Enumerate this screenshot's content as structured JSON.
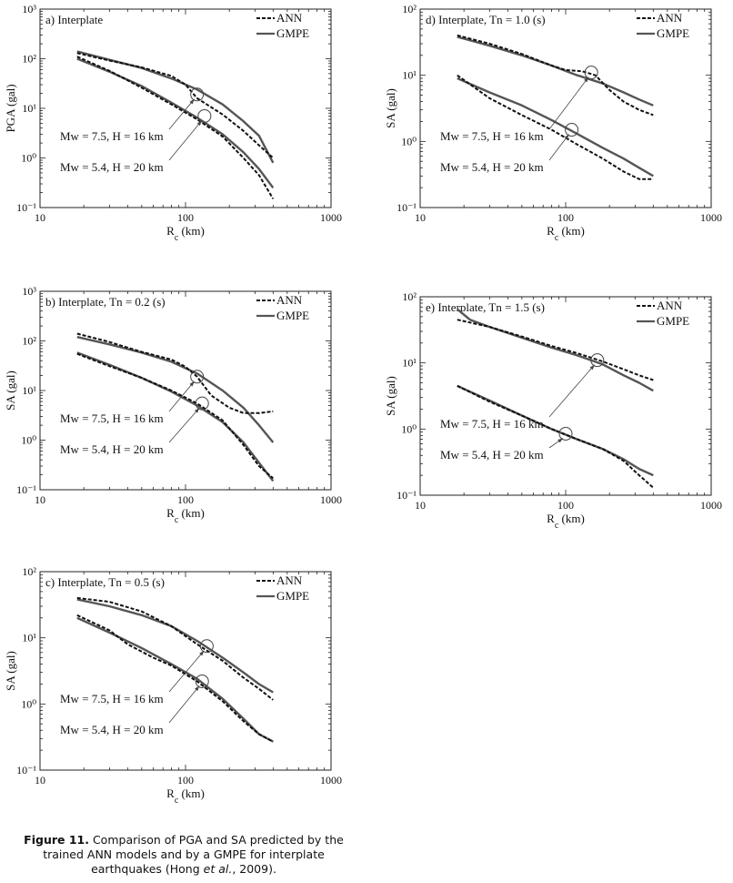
{
  "chart_data": [
    {
      "id": "a",
      "type": "line",
      "panel_label": "a) Interplate",
      "xlabel_main": "R",
      "xlabel_sub": "c",
      "xlabel_unit": " (km)",
      "ylabel": "PGA (gal)",
      "xscale": "log",
      "yscale": "log",
      "xlim": [
        10,
        1000
      ],
      "ylim_exp": [
        -1,
        3
      ],
      "x_ticks": [
        "10",
        "100",
        "1000"
      ],
      "y_tick_exps": [
        -1,
        0,
        1,
        2,
        3
      ],
      "legend": [
        {
          "name": "ANN",
          "style": "dashed"
        },
        {
          "name": "GMPE",
          "style": "solid"
        }
      ],
      "annotations": [
        {
          "text": "Mw = 7.5, H = 16 km",
          "circle_at": [
            120,
            19
          ]
        },
        {
          "text": "Mw = 5.4, H = 20 km",
          "circle_at": [
            135,
            7
          ]
        }
      ],
      "series": [
        {
          "name": "GMPE",
          "case": "Mw = 7.5, H = 16 km",
          "style": "solid",
          "x": [
            18,
            30,
            50,
            80,
            120,
            180,
            250,
            320,
            400
          ],
          "y": [
            140,
            95,
            65,
            40,
            24,
            12,
            5.5,
            2.8,
            0.8
          ]
        },
        {
          "name": "ANN",
          "case": "Mw = 7.5, H = 16 km",
          "style": "dashed",
          "x": [
            18,
            30,
            50,
            80,
            100,
            120,
            180,
            250,
            320,
            400
          ],
          "y": [
            130,
            92,
            67,
            45,
            30,
            16,
            7.5,
            3.5,
            1.8,
            1.0
          ]
        },
        {
          "name": "GMPE",
          "case": "Mw = 5.4, H = 20 km",
          "style": "solid",
          "x": [
            18,
            30,
            50,
            80,
            120,
            180,
            250,
            320,
            400
          ],
          "y": [
            100,
            55,
            28,
            13,
            6.5,
            3.0,
            1.3,
            0.6,
            0.25
          ]
        },
        {
          "name": "ANN",
          "case": "Mw = 5.4, H = 20 km",
          "style": "dashed",
          "x": [
            18,
            30,
            50,
            80,
            120,
            180,
            250,
            320,
            400
          ],
          "y": [
            110,
            57,
            26,
            12,
            6.0,
            2.7,
            1.0,
            0.45,
            0.15
          ]
        }
      ]
    },
    {
      "id": "b",
      "type": "line",
      "panel_label": "b) Interplate, Tn = 0.2 (s)",
      "xlabel_main": "R",
      "xlabel_sub": "c",
      "xlabel_unit": " (km)",
      "ylabel": "SA (gal)",
      "xscale": "log",
      "yscale": "log",
      "xlim": [
        10,
        1000
      ],
      "ylim_exp": [
        -1,
        3
      ],
      "x_ticks": [
        "10",
        "100",
        "1000"
      ],
      "y_tick_exps": [
        -1,
        0,
        1,
        2,
        3
      ],
      "legend": [
        {
          "name": "ANN",
          "style": "dashed"
        },
        {
          "name": "GMPE",
          "style": "solid"
        }
      ],
      "annotations": [
        {
          "text": "Mw = 7.5, H = 16 km",
          "circle_at": [
            120,
            19
          ]
        },
        {
          "text": "Mw = 5.4, H = 20 km",
          "circle_at": [
            130,
            5.5
          ]
        }
      ],
      "series": [
        {
          "name": "GMPE",
          "case": "Mw = 7.5, H = 16 km",
          "style": "solid",
          "x": [
            18,
            30,
            50,
            80,
            120,
            180,
            250,
            320,
            400
          ],
          "y": [
            120,
            85,
            58,
            38,
            22,
            10,
            4.5,
            2.0,
            0.9
          ]
        },
        {
          "name": "ANN",
          "case": "Mw = 7.5, H = 16 km",
          "style": "dashed",
          "x": [
            18,
            30,
            50,
            80,
            100,
            120,
            150,
            200,
            250,
            320,
            400
          ],
          "y": [
            140,
            95,
            60,
            42,
            30,
            19,
            8,
            4.5,
            3.5,
            3.5,
            3.8
          ]
        },
        {
          "name": "GMPE",
          "case": "Mw = 5.4, H = 20 km",
          "style": "solid",
          "x": [
            18,
            30,
            50,
            80,
            120,
            180,
            250,
            320,
            400
          ],
          "y": [
            58,
            33,
            18,
            9.5,
            5.0,
            2.3,
            0.9,
            0.35,
            0.15
          ]
        },
        {
          "name": "ANN",
          "case": "Mw = 5.4, H = 20 km",
          "style": "dashed",
          "x": [
            18,
            30,
            50,
            80,
            120,
            180,
            250,
            320,
            400
          ],
          "y": [
            55,
            31,
            18,
            10,
            5.5,
            2.5,
            0.8,
            0.3,
            0.17
          ]
        }
      ]
    },
    {
      "id": "c",
      "type": "line",
      "panel_label": "c) Interplate, Tn = 0.5 (s)",
      "xlabel_main": "R",
      "xlabel_sub": "c",
      "xlabel_unit": " (km)",
      "ylabel": "SA (gal)",
      "xscale": "log",
      "yscale": "log",
      "xlim": [
        10,
        1000
      ],
      "ylim_exp": [
        -1,
        2
      ],
      "x_ticks": [
        "10",
        "100",
        "1000"
      ],
      "y_tick_exps": [
        -1,
        0,
        1,
        2
      ],
      "legend": [
        {
          "name": "ANN",
          "style": "dashed"
        },
        {
          "name": "GMPE",
          "style": "solid"
        }
      ],
      "annotations": [
        {
          "text": "Mw = 7.5, H = 16 km",
          "circle_at": [
            140,
            7.5
          ]
        },
        {
          "text": "Mw = 5.4, H = 20 km",
          "circle_at": [
            130,
            2.2
          ]
        }
      ],
      "series": [
        {
          "name": "GMPE",
          "case": "Mw = 7.5, H = 16 km",
          "style": "solid",
          "x": [
            18,
            30,
            50,
            80,
            120,
            180,
            250,
            320,
            400
          ],
          "y": [
            38,
            30,
            22,
            15,
            9,
            5,
            3,
            2.0,
            1.5
          ]
        },
        {
          "name": "ANN",
          "case": "Mw = 7.5, H = 16 km",
          "style": "dashed",
          "x": [
            18,
            30,
            50,
            80,
            120,
            180,
            250,
            320,
            400
          ],
          "y": [
            40,
            35,
            25,
            15,
            8,
            4.5,
            2.5,
            1.7,
            1.15
          ]
        },
        {
          "name": "GMPE",
          "case": "Mw = 5.4, H = 20 km",
          "style": "solid",
          "x": [
            18,
            30,
            50,
            80,
            120,
            180,
            250,
            320,
            400
          ],
          "y": [
            20,
            12,
            7,
            4,
            2.4,
            1.2,
            0.6,
            0.35,
            0.27
          ]
        },
        {
          "name": "ANN",
          "case": "Mw = 5.4, H = 20 km",
          "style": "dashed",
          "x": [
            18,
            30,
            40,
            60,
            80,
            120,
            180,
            250,
            320,
            400
          ],
          "y": [
            22,
            13,
            8,
            5,
            3.8,
            2.2,
            1.1,
            0.55,
            0.35,
            0.27
          ]
        }
      ]
    },
    {
      "id": "d",
      "type": "line",
      "panel_label": "d) Interplate, Tn = 1.0 (s)",
      "xlabel_main": "R",
      "xlabel_sub": "c",
      "xlabel_unit": " (km)",
      "ylabel": "SA (gal)",
      "xscale": "log",
      "yscale": "log",
      "xlim": [
        10,
        1000
      ],
      "ylim_exp": [
        -1,
        2
      ],
      "x_ticks": [
        "10",
        "100",
        "1000"
      ],
      "y_tick_exps": [
        -1,
        0,
        1,
        2
      ],
      "legend": [
        {
          "name": "ANN",
          "style": "dashed"
        },
        {
          "name": "GMPE",
          "style": "solid"
        }
      ],
      "annotations": [
        {
          "text": "Mw = 7.5, H = 16 km",
          "circle_at": [
            150,
            11
          ]
        },
        {
          "text": "Mw = 5.4, H = 20 km",
          "circle_at": [
            110,
            1.5
          ]
        }
      ],
      "series": [
        {
          "name": "GMPE",
          "case": "Mw = 7.5, H = 16 km",
          "style": "solid",
          "x": [
            18,
            30,
            50,
            80,
            120,
            180,
            250,
            320,
            400
          ],
          "y": [
            38,
            28,
            20,
            14,
            10,
            7.5,
            5.5,
            4.3,
            3.5
          ]
        },
        {
          "name": "ANN",
          "case": "Mw = 7.5, H = 16 km",
          "style": "dashed",
          "x": [
            18,
            30,
            50,
            80,
            100,
            130,
            160,
            200,
            250,
            320,
            400
          ],
          "y": [
            40,
            30,
            21,
            14,
            12,
            11.5,
            10,
            6,
            4,
            3,
            2.5
          ]
        },
        {
          "name": "GMPE",
          "case": "Mw = 5.4, H = 20 km",
          "style": "solid",
          "x": [
            18,
            30,
            50,
            80,
            120,
            180,
            250,
            320,
            400
          ],
          "y": [
            9,
            5.5,
            3.5,
            2.1,
            1.3,
            0.8,
            0.55,
            0.4,
            0.3
          ]
        },
        {
          "name": "ANN",
          "case": "Mw = 5.4, H = 20 km",
          "style": "dashed",
          "x": [
            18,
            30,
            50,
            80,
            120,
            180,
            250,
            320,
            400
          ],
          "y": [
            10,
            4.5,
            2.5,
            1.5,
            0.9,
            0.55,
            0.35,
            0.27,
            0.27
          ]
        }
      ]
    },
    {
      "id": "e",
      "type": "line",
      "panel_label": "e) Interplate, Tn = 1.5 (s)",
      "xlabel_main": "R",
      "xlabel_sub": "c",
      "xlabel_unit": " (km)",
      "ylabel": "SA (gal)",
      "xscale": "log",
      "yscale": "log",
      "xlim": [
        10,
        1000
      ],
      "ylim_exp": [
        -1,
        2
      ],
      "x_ticks": [
        "10",
        "100",
        "1000"
      ],
      "y_tick_exps": [
        -1,
        0,
        1,
        2
      ],
      "legend": [
        {
          "name": "ANN",
          "style": "dashed"
        },
        {
          "name": "GMPE",
          "style": "solid"
        }
      ],
      "annotations": [
        {
          "text": "Mw = 7.5, H = 16 km",
          "circle_at": [
            165,
            11
          ]
        },
        {
          "text": "Mw = 5.4, H = 20 km",
          "circle_at": [
            100,
            0.85
          ]
        }
      ],
      "series": [
        {
          "name": "GMPE",
          "case": "Mw = 7.5, H = 16 km",
          "style": "solid",
          "x": [
            18,
            22,
            30,
            50,
            80,
            120,
            180,
            250,
            320,
            400
          ],
          "y": [
            65,
            45,
            35,
            24,
            17,
            13,
            9.5,
            6.5,
            5,
            3.8
          ]
        },
        {
          "name": "ANN",
          "case": "Mw = 7.5, H = 16 km",
          "style": "dashed",
          "x": [
            18,
            30,
            50,
            80,
            120,
            180,
            250,
            320,
            400
          ],
          "y": [
            45,
            35,
            25,
            18,
            14,
            10.5,
            8,
            6.5,
            5.5
          ]
        },
        {
          "name": "GMPE",
          "case": "Mw = 5.4, H = 20 km",
          "style": "solid",
          "x": [
            18,
            30,
            50,
            80,
            120,
            180,
            250,
            320,
            400
          ],
          "y": [
            4.5,
            2.7,
            1.6,
            1.0,
            0.7,
            0.5,
            0.35,
            0.25,
            0.2
          ]
        },
        {
          "name": "ANN",
          "case": "Mw = 5.4, H = 20 km",
          "style": "dashed",
          "x": [
            18,
            30,
            50,
            80,
            120,
            180,
            250,
            320,
            400
          ],
          "y": [
            4.5,
            2.6,
            1.6,
            1.0,
            0.7,
            0.5,
            0.33,
            0.2,
            0.13
          ]
        }
      ]
    }
  ],
  "caption": {
    "label": "Figure 11.",
    "text_1": " Comparison of PGA and SA predicted by the trained ANN models and by a GMPE for interplate earthquakes (Hong ",
    "et_al": "et al.",
    "text_2": ", 2009)."
  }
}
